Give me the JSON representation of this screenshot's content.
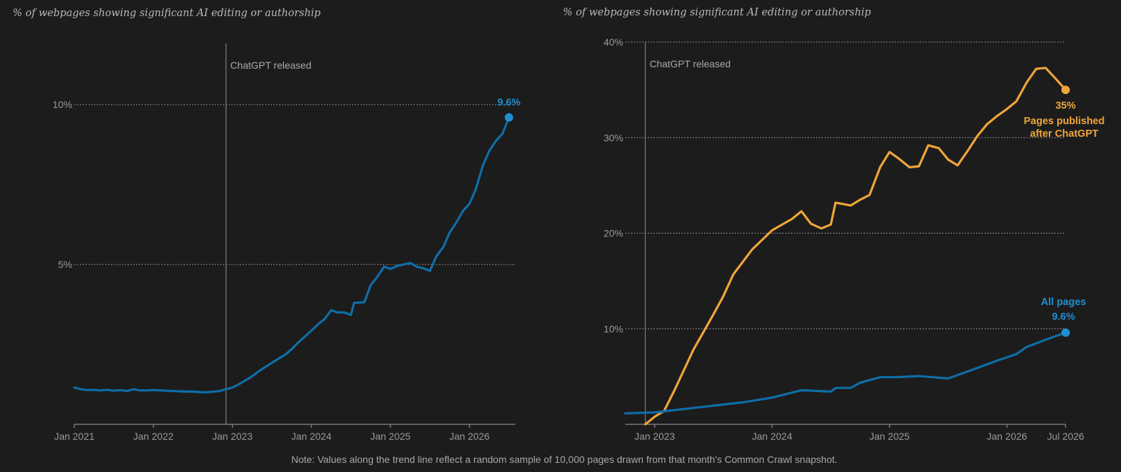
{
  "note": "Note: Values along the trend line reflect a random sample of 10,000 pages drawn from that month's Common Crawl snapshot.",
  "colors": {
    "all_pages": "#1f8fcf",
    "all_pages_line": "#0e6ea8",
    "after_chatgpt": "#f0a53a",
    "background": "#1c1c1c"
  },
  "chart_data": [
    {
      "type": "line",
      "subtitle": "% of webpages showing significant AI editing or authorship",
      "x_tick_labels": [
        "Jan 2021",
        "Jan 2022",
        "Jan 2023",
        "Jan 2024",
        "Jan 2025",
        "Jan 2026"
      ],
      "x_tick_values": [
        2021.0,
        2022.0,
        2023.0,
        2024.0,
        2025.0,
        2026.0
      ],
      "y_tick_labels": [
        "10%",
        "5%"
      ],
      "y_tick_values": [
        10,
        5
      ],
      "xlim": [
        2021.0,
        2026.58
      ],
      "ylim": [
        0,
        12.0
      ],
      "grid": "horizontal dotted",
      "annotations": [
        {
          "x": 2022.92,
          "label": "ChatGPT released"
        }
      ],
      "series": [
        {
          "name": "",
          "end_label": "9.6%",
          "points": [
            [
              2021.0,
              1.15
            ],
            [
              2021.08,
              1.1
            ],
            [
              2021.17,
              1.07
            ],
            [
              2021.25,
              1.08
            ],
            [
              2021.33,
              1.06
            ],
            [
              2021.42,
              1.08
            ],
            [
              2021.5,
              1.05
            ],
            [
              2021.58,
              1.07
            ],
            [
              2021.67,
              1.04
            ],
            [
              2021.75,
              1.1
            ],
            [
              2021.83,
              1.06
            ],
            [
              2021.92,
              1.06
            ],
            [
              2022.0,
              1.07
            ],
            [
              2022.17,
              1.05
            ],
            [
              2022.33,
              1.03
            ],
            [
              2022.5,
              1.02
            ],
            [
              2022.67,
              1.0
            ],
            [
              2022.83,
              1.04
            ],
            [
              2022.92,
              1.1
            ],
            [
              2023.0,
              1.15
            ],
            [
              2023.08,
              1.25
            ],
            [
              2023.17,
              1.38
            ],
            [
              2023.25,
              1.5
            ],
            [
              2023.33,
              1.65
            ],
            [
              2023.42,
              1.8
            ],
            [
              2023.5,
              1.92
            ],
            [
              2023.58,
              2.05
            ],
            [
              2023.67,
              2.18
            ],
            [
              2023.75,
              2.35
            ],
            [
              2023.83,
              2.55
            ],
            [
              2023.92,
              2.75
            ],
            [
              2024.0,
              2.93
            ],
            [
              2024.08,
              3.12
            ],
            [
              2024.17,
              3.3
            ],
            [
              2024.25,
              3.57
            ],
            [
              2024.33,
              3.5
            ],
            [
              2024.42,
              3.5
            ],
            [
              2024.5,
              3.42
            ],
            [
              2024.54,
              3.8
            ],
            [
              2024.67,
              3.82
            ],
            [
              2024.75,
              4.35
            ],
            [
              2024.83,
              4.6
            ],
            [
              2024.92,
              4.93
            ],
            [
              2025.0,
              4.86
            ],
            [
              2025.08,
              4.95
            ],
            [
              2025.17,
              5.0
            ],
            [
              2025.25,
              5.05
            ],
            [
              2025.33,
              4.93
            ],
            [
              2025.42,
              4.88
            ],
            [
              2025.5,
              4.8
            ],
            [
              2025.58,
              5.25
            ],
            [
              2025.67,
              5.55
            ],
            [
              2025.75,
              6.0
            ],
            [
              2025.83,
              6.3
            ],
            [
              2025.92,
              6.68
            ],
            [
              2026.0,
              6.9
            ],
            [
              2026.08,
              7.35
            ],
            [
              2026.17,
              8.1
            ],
            [
              2026.25,
              8.55
            ],
            [
              2026.33,
              8.85
            ],
            [
              2026.42,
              9.1
            ],
            [
              2026.5,
              9.6
            ]
          ]
        }
      ]
    },
    {
      "type": "line",
      "subtitle": "% of webpages showing significant AI editing or authorship",
      "x_tick_labels": [
        "Jan 2023",
        "Jan 2024",
        "Jan 2025",
        "Jan 2026",
        "Jul 2026"
      ],
      "x_tick_values": [
        2023.0,
        2024.0,
        2025.0,
        2026.0,
        2026.5
      ],
      "y_tick_labels": [
        "40%",
        "30%",
        "20%",
        "10%"
      ],
      "y_tick_values": [
        40,
        30,
        20,
        10
      ],
      "xlim": [
        2022.75,
        2026.5
      ],
      "ylim": [
        0,
        40
      ],
      "grid": "horizontal dotted",
      "annotations": [
        {
          "x": 2022.92,
          "label": "ChatGPT released"
        }
      ],
      "series": [
        {
          "name": "Pages published after ChatGPT",
          "label_lines": [
            "Pages published",
            "after ChatGPT"
          ],
          "end_label": "35%",
          "points": [
            [
              2022.92,
              0.0
            ],
            [
              2023.0,
              0.8
            ],
            [
              2023.08,
              1.4
            ],
            [
              2023.17,
              3.6
            ],
            [
              2023.33,
              7.8
            ],
            [
              2023.5,
              11.5
            ],
            [
              2023.58,
              13.3
            ],
            [
              2023.67,
              15.7
            ],
            [
              2023.83,
              18.3
            ],
            [
              2024.0,
              20.3
            ],
            [
              2024.17,
              21.5
            ],
            [
              2024.25,
              22.3
            ],
            [
              2024.33,
              21.0
            ],
            [
              2024.42,
              20.5
            ],
            [
              2024.5,
              20.9
            ],
            [
              2024.54,
              23.2
            ],
            [
              2024.67,
              22.9
            ],
            [
              2024.75,
              23.5
            ],
            [
              2024.83,
              24.0
            ],
            [
              2024.92,
              26.9
            ],
            [
              2025.0,
              28.5
            ],
            [
              2025.08,
              27.8
            ],
            [
              2025.17,
              26.9
            ],
            [
              2025.25,
              27.0
            ],
            [
              2025.33,
              29.2
            ],
            [
              2025.42,
              28.9
            ],
            [
              2025.5,
              27.7
            ],
            [
              2025.58,
              27.1
            ],
            [
              2025.67,
              28.7
            ],
            [
              2025.75,
              30.2
            ],
            [
              2025.83,
              31.4
            ],
            [
              2025.92,
              32.3
            ],
            [
              2026.0,
              33.0
            ],
            [
              2026.08,
              33.8
            ],
            [
              2026.17,
              35.8
            ],
            [
              2026.25,
              37.2
            ],
            [
              2026.33,
              37.3
            ],
            [
              2026.42,
              36.1
            ],
            [
              2026.5,
              35.0
            ]
          ]
        },
        {
          "name": "All pages",
          "label_lines": [
            "All pages"
          ],
          "end_label": "9.6%",
          "points": [
            [
              2022.75,
              1.15
            ],
            [
              2023.0,
              1.25
            ],
            [
              2023.25,
              1.6
            ],
            [
              2023.5,
              1.95
            ],
            [
              2023.75,
              2.3
            ],
            [
              2024.0,
              2.8
            ],
            [
              2024.25,
              3.57
            ],
            [
              2024.5,
              3.42
            ],
            [
              2024.54,
              3.8
            ],
            [
              2024.67,
              3.82
            ],
            [
              2024.75,
              4.35
            ],
            [
              2024.92,
              4.93
            ],
            [
              2025.08,
              4.95
            ],
            [
              2025.25,
              5.05
            ],
            [
              2025.5,
              4.8
            ],
            [
              2025.67,
              5.55
            ],
            [
              2025.92,
              6.68
            ],
            [
              2026.08,
              7.35
            ],
            [
              2026.17,
              8.1
            ],
            [
              2026.33,
              8.85
            ],
            [
              2026.5,
              9.6
            ]
          ]
        }
      ]
    }
  ]
}
